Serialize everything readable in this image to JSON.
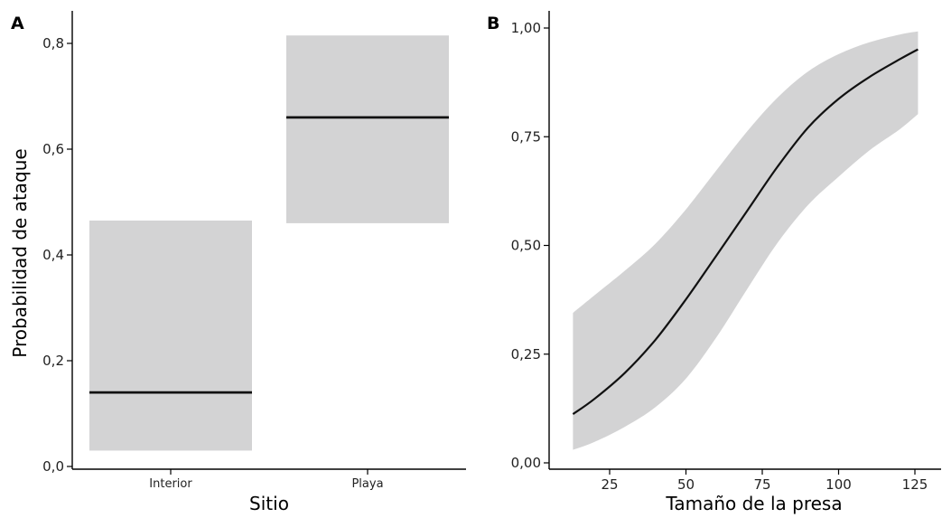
{
  "chart_data": [
    {
      "panel": "A",
      "type": "bar",
      "categories": [
        "Interior",
        "Playa"
      ],
      "values": [
        0.14,
        0.66
      ],
      "lower": [
        0.03,
        0.46
      ],
      "upper": [
        0.465,
        0.815
      ],
      "xlabel": "Sitio",
      "ylabel": "Probabilidad de ataque",
      "ylim": [
        0.0,
        0.85
      ],
      "yticks": [
        0.0,
        0.2,
        0.4,
        0.6,
        0.8
      ],
      "ytick_labels": [
        "0,0",
        "0,2",
        "0,4",
        "0,6",
        "0,8"
      ],
      "grid": false
    },
    {
      "panel": "B",
      "type": "line",
      "x": [
        13,
        20,
        30,
        40,
        50,
        60,
        70,
        80,
        90,
        100,
        110,
        120,
        126
      ],
      "y": [
        0.112,
        0.147,
        0.207,
        0.283,
        0.376,
        0.477,
        0.579,
        0.681,
        0.771,
        0.837,
        0.887,
        0.928,
        0.951
      ],
      "lower": [
        0.03,
        0.048,
        0.083,
        0.128,
        0.194,
        0.289,
        0.399,
        0.506,
        0.593,
        0.658,
        0.718,
        0.767,
        0.802
      ],
      "upper": [
        0.345,
        0.385,
        0.442,
        0.504,
        0.583,
        0.673,
        0.762,
        0.84,
        0.9,
        0.94,
        0.967,
        0.985,
        0.992
      ],
      "xlabel": "Tamaño de la presa",
      "ylabel": "",
      "xlim": [
        5,
        133
      ],
      "ylim": [
        0.0,
        1.02
      ],
      "xticks": [
        25,
        50,
        75,
        100,
        125
      ],
      "xtick_labels": [
        "25",
        "50",
        "75",
        "100",
        "125"
      ],
      "yticks": [
        0.0,
        0.25,
        0.5,
        0.75,
        1.0
      ],
      "ytick_labels": [
        "0,00",
        "0,25",
        "0,50",
        "0,75",
        "1,00"
      ],
      "grid": false
    }
  ],
  "colors": {
    "band": "#d3d3d4",
    "line": "#111111",
    "axis": "#000000"
  }
}
